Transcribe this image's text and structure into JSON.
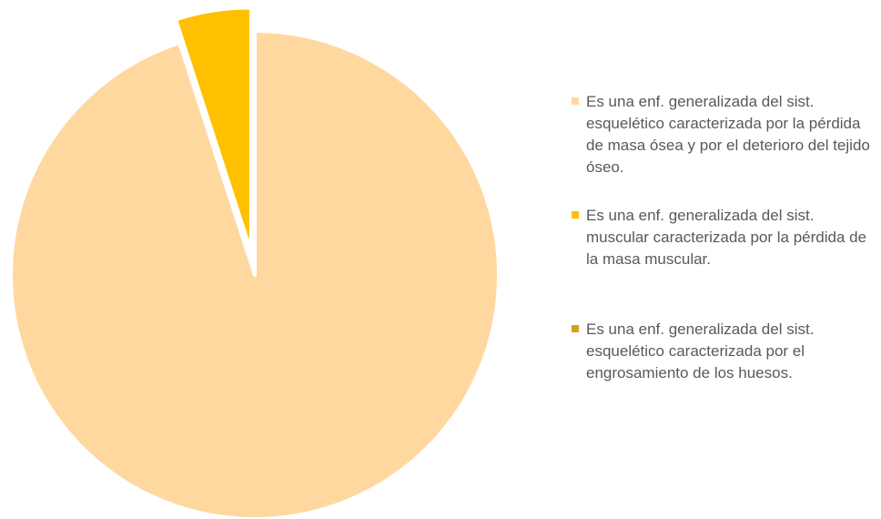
{
  "chart_data": {
    "type": "pie",
    "categories": [
      "Es una enf. generalizada del sist. esquelético caracterizada por la pérdida de masa ósea y por el deterioro del tejido óseo.",
      "Es una enf. generalizada del sist. muscular caracterizada por la pérdida de la masa muscular.",
      "Es una enf. generalizada del sist. esquelético caracterizada por el engrosamiento de los huesos."
    ],
    "values": [
      95,
      5,
      0
    ],
    "colors": [
      "#ffd8a0",
      "#ffc000",
      "#d4a017"
    ],
    "explode": [
      false,
      true,
      false
    ],
    "legend": "right"
  }
}
